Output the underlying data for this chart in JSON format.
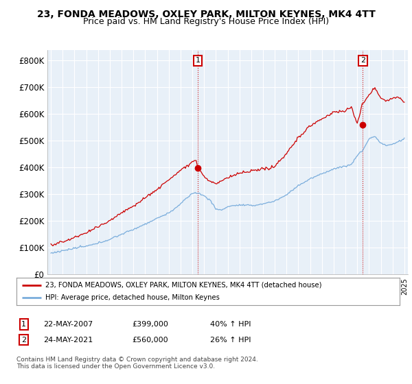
{
  "title_line1": "23, FONDA MEADOWS, OXLEY PARK, MILTON KEYNES, MK4 4TT",
  "title_line2": "Price paid vs. HM Land Registry's House Price Index (HPI)",
  "ytick_labels": [
    "£0",
    "£100K",
    "£200K",
    "£300K",
    "£400K",
    "£500K",
    "£600K",
    "£700K",
    "£800K"
  ],
  "yticks": [
    0,
    100000,
    200000,
    300000,
    400000,
    500000,
    600000,
    700000,
    800000
  ],
  "ylim": [
    0,
    840000
  ],
  "xlim_min": 1994.7,
  "xlim_max": 2025.3,
  "red_color": "#cc0000",
  "blue_color": "#7aaddc",
  "chart_bg": "#e8f0f8",
  "legend_line1": "23, FONDA MEADOWS, OXLEY PARK, MILTON KEYNES, MK4 4TT (detached house)",
  "legend_line2": "HPI: Average price, detached house, Milton Keynes",
  "annotation1_date": "22-MAY-2007",
  "annotation1_price": "£399,000",
  "annotation1_hpi": "40% ↑ HPI",
  "annotation2_date": "24-MAY-2021",
  "annotation2_price": "£560,000",
  "annotation2_hpi": "26% ↑ HPI",
  "footer": "Contains HM Land Registry data © Crown copyright and database right 2024.\nThis data is licensed under the Open Government Licence v3.0.",
  "background_color": "#ffffff",
  "grid_color": "#ffffff"
}
